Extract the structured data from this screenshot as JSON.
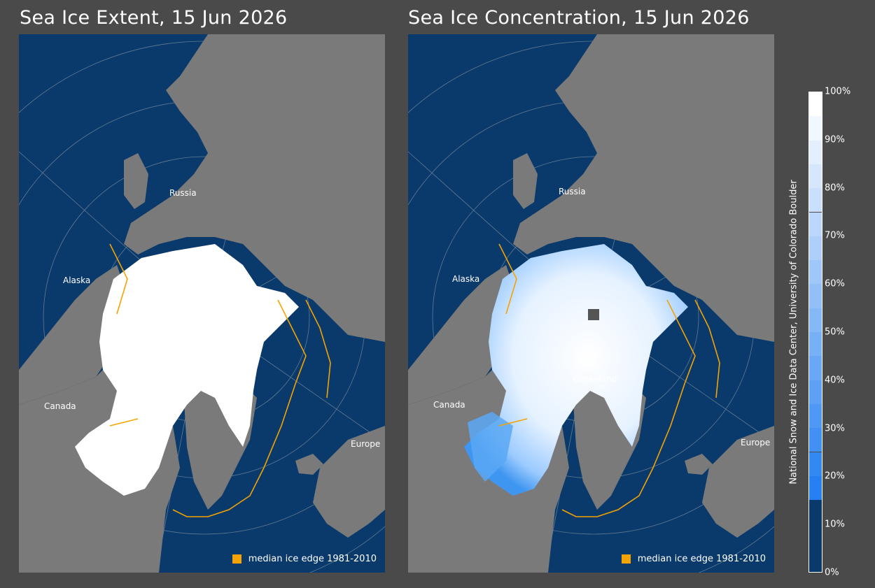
{
  "panels": {
    "extent": {
      "title": "Sea Ice Extent, 15 Jun 2026",
      "legend": "median ice edge 1981-2010"
    },
    "concentration": {
      "title": "Sea Ice Concentration, 15 Jun 2026",
      "legend": "median ice edge 1981-2010"
    }
  },
  "regions": {
    "russia": "Russia",
    "alaska": "Alaska",
    "canada": "Canada",
    "greenland": "Greenland",
    "europe": "Europe"
  },
  "colorbar": {
    "ticks": [
      "100%",
      "90%",
      "80%",
      "70%",
      "60%",
      "50%",
      "40%",
      "30%",
      "20%",
      "10%",
      "0%"
    ]
  },
  "credit": "National Snow and Ice Data Center, University of Colorado Boulder",
  "colors": {
    "ocean": "#0a3a6b",
    "land": "#7a7a7a",
    "ice": "#ffffff",
    "median_edge": "#f5a300",
    "background": "#4a4a4a"
  }
}
